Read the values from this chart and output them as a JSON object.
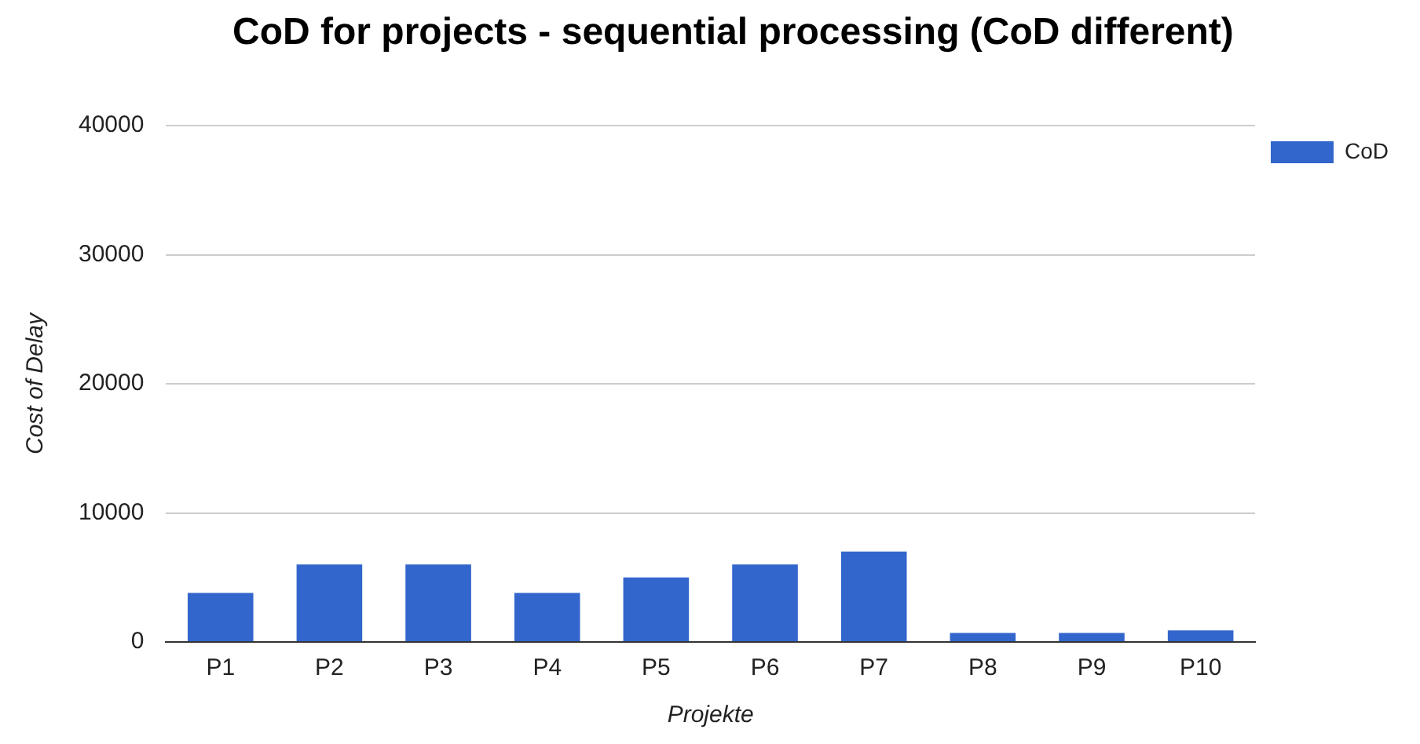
{
  "chart_data": {
    "type": "bar",
    "title": "CoD for projects - sequential processing (CoD different)",
    "xlabel": "Projekte",
    "ylabel": "Cost of Delay",
    "categories": [
      "P1",
      "P2",
      "P3",
      "P4",
      "P5",
      "P6",
      "P7",
      "P8",
      "P9",
      "P10"
    ],
    "series": [
      {
        "name": "CoD",
        "color": "#3366cc",
        "values": [
          3800,
          6000,
          6000,
          3800,
          5000,
          6000,
          7000,
          700,
          700,
          900
        ]
      }
    ],
    "ylim": [
      0,
      40000
    ],
    "yticks": [
      0,
      10000,
      20000,
      30000,
      40000
    ],
    "grid": "y",
    "legend": "top right"
  }
}
